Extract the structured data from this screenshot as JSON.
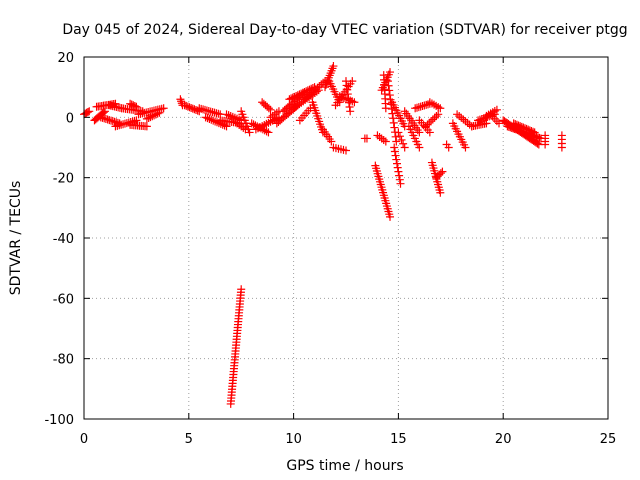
{
  "chart_data": {
    "type": "scatter",
    "title": "Day 045 of 2024, Sidereal Day-to-day VTEC variation (SDTVAR) for receiver ptgg",
    "xlabel": "GPS time / hours",
    "ylabel": "SDTVAR / TECUs",
    "xlim": [
      0,
      25
    ],
    "ylim": [
      -100,
      20
    ],
    "xticks": [
      0,
      5,
      10,
      15,
      20,
      25
    ],
    "yticks": [
      -100,
      -80,
      -60,
      -40,
      -20,
      0,
      20
    ],
    "grid": true,
    "marker": "+",
    "color": "#ff0000",
    "series": [
      {
        "name": "SDTVAR",
        "segments": [
          {
            "from": [
              0.0,
              1.0
            ],
            "to": [
              0.25,
              2.0
            ],
            "n": 5
          },
          {
            "from": [
              0.5,
              -1.0
            ],
            "to": [
              1.0,
              2.0
            ],
            "n": 10
          },
          {
            "from": [
              0.6,
              3.5
            ],
            "to": [
              1.5,
              4.5
            ],
            "n": 12
          },
          {
            "from": [
              0.8,
              0.0
            ],
            "to": [
              1.7,
              -2.0
            ],
            "n": 12
          },
          {
            "from": [
              1.2,
              4.0
            ],
            "to": [
              1.8,
              3.0
            ],
            "n": 8
          },
          {
            "from": [
              1.5,
              -3.0
            ],
            "to": [
              2.5,
              -1.0
            ],
            "n": 12
          },
          {
            "from": [
              1.8,
              3.0
            ],
            "to": [
              2.8,
              2.0
            ],
            "n": 12
          },
          {
            "from": [
              2.2,
              4.5
            ],
            "to": [
              2.5,
              3.5
            ],
            "n": 5
          },
          {
            "from": [
              2.2,
              -2.5
            ],
            "to": [
              3.0,
              -3.0
            ],
            "n": 10
          },
          {
            "from": [
              2.6,
              1.0
            ],
            "to": [
              3.8,
              3.0
            ],
            "n": 14
          },
          {
            "from": [
              3.0,
              -0.5
            ],
            "to": [
              3.6,
              1.5
            ],
            "n": 8
          },
          {
            "from": [
              4.6,
              6.0
            ],
            "to": [
              4.7,
              4.0
            ],
            "n": 4
          },
          {
            "from": [
              4.8,
              4.0
            ],
            "to": [
              5.5,
              2.0
            ],
            "n": 10
          },
          {
            "from": [
              5.5,
              3.0
            ],
            "to": [
              6.5,
              1.0
            ],
            "n": 12
          },
          {
            "from": [
              5.8,
              0.0
            ],
            "to": [
              6.8,
              -3.0
            ],
            "n": 12
          },
          {
            "from": [
              6.5,
              -1.0
            ],
            "to": [
              7.5,
              -2.0
            ],
            "n": 12
          },
          {
            "from": [
              6.8,
              1.0
            ],
            "to": [
              7.5,
              -1.0
            ],
            "n": 8
          },
          {
            "from": [
              7.0,
              -95.0
            ],
            "to": [
              7.5,
              -57.0
            ],
            "n": 40
          },
          {
            "from": [
              7.5,
              2.0
            ],
            "to": [
              7.9,
              -5.0
            ],
            "n": 8
          },
          {
            "from": [
              7.3,
              -2.0
            ],
            "to": [
              7.7,
              -4.0
            ],
            "n": 5
          },
          {
            "from": [
              8.0,
              -2.0
            ],
            "to": [
              8.8,
              -5.0
            ],
            "n": 10
          },
          {
            "from": [
              8.2,
              -4.0
            ],
            "to": [
              9.3,
              0.0
            ],
            "n": 12
          },
          {
            "from": [
              8.5,
              5.0
            ],
            "to": [
              8.9,
              2.5
            ],
            "n": 6
          },
          {
            "from": [
              8.9,
              0.0
            ],
            "to": [
              9.3,
              2.0
            ],
            "n": 5
          },
          {
            "from": [
              9.2,
              -2.0
            ],
            "to": [
              10.2,
              4.0
            ],
            "n": 14
          },
          {
            "from": [
              9.5,
              2.0
            ],
            "to": [
              10.5,
              8.0
            ],
            "n": 14
          },
          {
            "from": [
              9.8,
              6.0
            ],
            "to": [
              11.0,
              10.0
            ],
            "n": 16
          },
          {
            "from": [
              10.0,
              3.0
            ],
            "to": [
              11.2,
              9.0
            ],
            "n": 14
          },
          {
            "from": [
              10.3,
              -1.0
            ],
            "to": [
              10.8,
              3.0
            ],
            "n": 6
          },
          {
            "from": [
              10.5,
              6.0
            ],
            "to": [
              11.5,
              12.0
            ],
            "n": 12
          },
          {
            "from": [
              10.9,
              5.0
            ],
            "to": [
              11.4,
              -5.0
            ],
            "n": 12
          },
          {
            "from": [
              11.4,
              -4.0
            ],
            "to": [
              11.8,
              -8.0
            ],
            "n": 6
          },
          {
            "from": [
              11.5,
              10.0
            ],
            "to": [
              11.9,
              17.0
            ],
            "n": 10
          },
          {
            "from": [
              11.7,
              12.0
            ],
            "to": [
              12.2,
              5.0
            ],
            "n": 9
          },
          {
            "from": [
              11.9,
              -10.0
            ],
            "to": [
              12.5,
              -11.0
            ],
            "n": 6
          },
          {
            "from": [
              12.0,
              4.0
            ],
            "to": [
              12.8,
              12.0
            ],
            "n": 10
          },
          {
            "from": [
              12.2,
              7.0
            ],
            "to": [
              12.9,
              5.0
            ],
            "n": 8
          },
          {
            "from": [
              12.5,
              12.0
            ],
            "to": [
              12.7,
              2.0
            ],
            "n": 8
          },
          {
            "from": [
              13.4,
              -7.0
            ],
            "to": [
              13.5,
              -7.0
            ],
            "n": 2
          },
          {
            "from": [
              13.9,
              -16.0
            ],
            "to": [
              14.6,
              -33.0
            ],
            "n": 20
          },
          {
            "from": [
              14.0,
              -6.0
            ],
            "to": [
              14.4,
              -8.0
            ],
            "n": 5
          },
          {
            "from": [
              14.2,
              9.0
            ],
            "to": [
              14.6,
              15.0
            ],
            "n": 8
          },
          {
            "from": [
              14.3,
              14.0
            ],
            "to": [
              14.4,
              3.0
            ],
            "n": 8
          },
          {
            "from": [
              14.5,
              12.0
            ],
            "to": [
              14.9,
              -8.0
            ],
            "n": 14
          },
          {
            "from": [
              14.7,
              5.0
            ],
            "to": [
              15.3,
              -3.0
            ],
            "n": 10
          },
          {
            "from": [
              14.8,
              -10.0
            ],
            "to": [
              15.1,
              -22.0
            ],
            "n": 10
          },
          {
            "from": [
              15.0,
              -5.0
            ],
            "to": [
              15.3,
              -10.0
            ],
            "n": 5
          },
          {
            "from": [
              15.3,
              2.0
            ],
            "to": [
              16.0,
              -5.0
            ],
            "n": 10
          },
          {
            "from": [
              15.5,
              -3.0
            ],
            "to": [
              16.0,
              -10.0
            ],
            "n": 8
          },
          {
            "from": [
              15.8,
              3.0
            ],
            "to": [
              16.5,
              4.5
            ],
            "n": 9
          },
          {
            "from": [
              16.0,
              -1.0
            ],
            "to": [
              16.5,
              -5.0
            ],
            "n": 6
          },
          {
            "from": [
              16.3,
              -3.0
            ],
            "to": [
              16.9,
              1.0
            ],
            "n": 8
          },
          {
            "from": [
              16.5,
              5.0
            ],
            "to": [
              17.0,
              3.0
            ],
            "n": 6
          },
          {
            "from": [
              16.6,
              -15.0
            ],
            "to": [
              17.0,
              -25.0
            ],
            "n": 12
          },
          {
            "from": [
              16.8,
              -20.0
            ],
            "to": [
              17.1,
              -18.0
            ],
            "n": 5
          },
          {
            "from": [
              17.3,
              -9.0
            ],
            "to": [
              17.4,
              -10.0
            ],
            "n": 2
          },
          {
            "from": [
              17.6,
              -2.0
            ],
            "to": [
              18.2,
              -10.0
            ],
            "n": 10
          },
          {
            "from": [
              17.8,
              1.0
            ],
            "to": [
              18.5,
              -3.0
            ],
            "n": 8
          },
          {
            "from": [
              18.5,
              -3.0
            ],
            "to": [
              19.2,
              -2.0
            ],
            "n": 9
          },
          {
            "from": [
              18.8,
              -1.0
            ],
            "to": [
              19.6,
              1.0
            ],
            "n": 10
          },
          {
            "from": [
              19.2,
              0.5
            ],
            "to": [
              19.7,
              2.5
            ],
            "n": 6
          },
          {
            "from": [
              19.4,
              1.0
            ],
            "to": [
              19.8,
              -2.0
            ],
            "n": 5
          },
          {
            "from": [
              20.0,
              -1.0
            ],
            "to": [
              21.7,
              -9.0
            ],
            "n": 28
          },
          {
            "from": [
              20.2,
              -3.0
            ],
            "to": [
              21.8,
              -7.0
            ],
            "n": 24
          },
          {
            "from": [
              20.5,
              -2.0
            ],
            "to": [
              21.5,
              -5.0
            ],
            "n": 14
          },
          {
            "from": [
              22.0,
              -6.0
            ],
            "to": [
              22.0,
              -9.0
            ],
            "n": 4
          },
          {
            "from": [
              22.8,
              -6.0
            ],
            "to": [
              22.8,
              -10.0
            ],
            "n": 4
          }
        ]
      }
    ]
  }
}
